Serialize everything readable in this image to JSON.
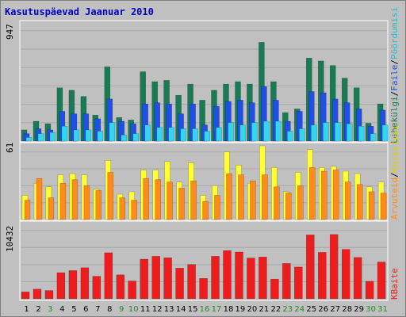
{
  "title": "Kasutuspäevad Jaanuar 2010",
  "colors": {
    "background": "#c0c0c0",
    "gridline": "#a9a9a9",
    "title": "#0000cc",
    "pageviews": "#1a7a55",
    "files": "#1f4fe6",
    "hits": "#33d6f0",
    "visits": "#ffff33",
    "sites": "#ff8c1a",
    "kbytes": "#ee1c1c",
    "weekday_label": "#000000",
    "weekend_label": "#228b22"
  },
  "legend": {
    "top": [
      "Lehekülgi",
      "Faile",
      "Pöördumisi"
    ],
    "middle": [
      "Külastusi",
      "Arvuteid"
    ],
    "bottom": [
      "KBaite"
    ],
    "separator": "/"
  },
  "chart_data": [
    {
      "type": "bar",
      "panel": "top",
      "ymax_label": "947",
      "ylim": [
        0,
        947
      ],
      "categories": [
        "1",
        "2",
        "3",
        "4",
        "5",
        "6",
        "7",
        "8",
        "9",
        "10",
        "11",
        "12",
        "13",
        "14",
        "15",
        "16",
        "17",
        "18",
        "19",
        "20",
        "21",
        "22",
        "23",
        "24",
        "25",
        "26",
        "27",
        "28",
        "29",
        "30",
        "31"
      ],
      "series": [
        {
          "name": "Lehekülgi",
          "values": [
            90,
            160,
            140,
            430,
            410,
            360,
            210,
            600,
            190,
            170,
            560,
            480,
            490,
            370,
            460,
            330,
            410,
            460,
            480,
            460,
            797,
            480,
            230,
            260,
            670,
            647,
            610,
            508,
            430,
            144,
            300
          ]
        },
        {
          "name": "Faile",
          "values": [
            60,
            100,
            90,
            240,
            220,
            220,
            180,
            340,
            160,
            140,
            300,
            310,
            300,
            220,
            300,
            130,
            280,
            320,
            330,
            310,
            440,
            330,
            160,
            240,
            400,
            390,
            340,
            310,
            260,
            120,
            250
          ]
        },
        {
          "name": "Pöördumisi",
          "values": [
            30,
            60,
            70,
            120,
            90,
            90,
            80,
            150,
            50,
            60,
            130,
            110,
            110,
            100,
            100,
            80,
            110,
            150,
            130,
            150,
            160,
            160,
            80,
            100,
            130,
            150,
            150,
            140,
            120,
            60,
            130
          ]
        }
      ]
    },
    {
      "type": "bar",
      "panel": "middle",
      "ymax_label": "61",
      "ylim": [
        0,
        61
      ],
      "categories": [
        "1",
        "2",
        "3",
        "4",
        "5",
        "6",
        "7",
        "8",
        "9",
        "10",
        "11",
        "12",
        "13",
        "14",
        "15",
        "16",
        "17",
        "18",
        "19",
        "20",
        "21",
        "22",
        "23",
        "24",
        "25",
        "26",
        "27",
        "28",
        "29",
        "30",
        "31"
      ],
      "series": [
        {
          "name": "Külastusi",
          "values": [
            20,
            30,
            27,
            37,
            38,
            37,
            25,
            49,
            21,
            23,
            41,
            41,
            48,
            31,
            47,
            20,
            28,
            56,
            45,
            30,
            61,
            43,
            23,
            39,
            58,
            43,
            44,
            40,
            38,
            27,
            31
          ]
        },
        {
          "name": "Arvuteid",
          "values": [
            16,
            34,
            18,
            30,
            33,
            28,
            24,
            39,
            18,
            16,
            34,
            33,
            31,
            26,
            32,
            15,
            20,
            38,
            37,
            32,
            37,
            27,
            22,
            28,
            43,
            40,
            41,
            31,
            29,
            23,
            22
          ]
        }
      ]
    },
    {
      "type": "bar",
      "panel": "bottom",
      "ymax_label": "10432",
      "ylim": [
        0,
        10432
      ],
      "categories": [
        "1",
        "2",
        "3",
        "4",
        "5",
        "6",
        "7",
        "8",
        "9",
        "10",
        "11",
        "12",
        "13",
        "14",
        "15",
        "16",
        "17",
        "18",
        "19",
        "20",
        "21",
        "22",
        "23",
        "24",
        "25",
        "26",
        "27",
        "28",
        "29",
        "30",
        "31"
      ],
      "series": [
        {
          "name": "KBaite",
          "values": [
            960,
            1355,
            1150,
            3650,
            3950,
            4350,
            3150,
            6450,
            3350,
            2500,
            5550,
            5950,
            5750,
            4300,
            4800,
            2850,
            5950,
            6750,
            6550,
            5700,
            5850,
            2750,
            4950,
            4450,
            8940,
            6500,
            9000,
            6910,
            5790,
            2450,
            5150
          ]
        }
      ]
    }
  ],
  "weekend_days": [
    3,
    9,
    10,
    16,
    17,
    23,
    24,
    30,
    31
  ]
}
